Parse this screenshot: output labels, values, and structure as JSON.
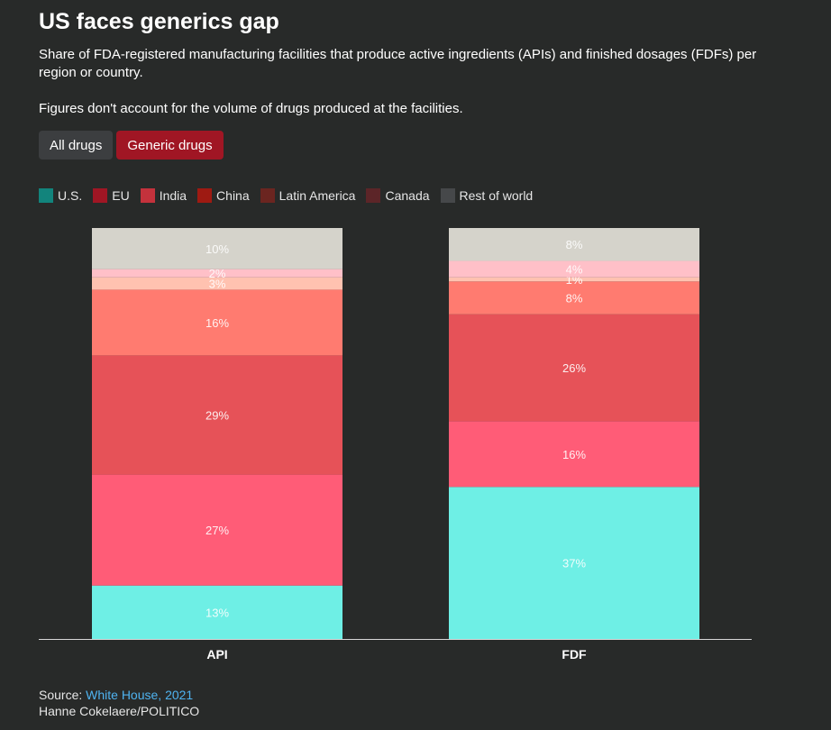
{
  "title": "US faces generics gap",
  "subtitle": "Share of FDA-registered manufacturing facilities that produce active ingredients (APIs) and finished dosages (FDFs) per region or country.",
  "note": "Figures don't account for the volume of drugs produced at the facilities.",
  "toggles": [
    {
      "label": "All drugs",
      "active": false
    },
    {
      "label": "Generic drugs",
      "active": true
    }
  ],
  "legend": [
    {
      "label": "U.S.",
      "color": "#12847c"
    },
    {
      "label": "EU",
      "color": "#a01624"
    },
    {
      "label": "India",
      "color": "#c4323c"
    },
    {
      "label": "China",
      "color": "#9e1a12"
    },
    {
      "label": "Latin America",
      "color": "#6b2520"
    },
    {
      "label": "Canada",
      "color": "#5c2528"
    },
    {
      "label": "Rest of world",
      "color": "#46484a"
    }
  ],
  "chart_data": {
    "type": "bar",
    "stacked": true,
    "categories": [
      "API",
      "FDF"
    ],
    "ylim": [
      0,
      100
    ],
    "series": [
      {
        "name": "U.S.",
        "values": [
          13,
          37
        ],
        "color": "#6eefe5"
      },
      {
        "name": "EU",
        "values": [
          27,
          16
        ],
        "color": "#ff5c77"
      },
      {
        "name": "India",
        "values": [
          29,
          26
        ],
        "color": "#e65258"
      },
      {
        "name": "China",
        "values": [
          16,
          8
        ],
        "color": "#ff7b70"
      },
      {
        "name": "Latin America",
        "values": [
          3,
          1
        ],
        "color": "#ffc2b0"
      },
      {
        "name": "Canada",
        "values": [
          2,
          4
        ],
        "color": "#ffc0c8"
      },
      {
        "name": "Rest of world",
        "values": [
          10,
          8
        ],
        "color": "#d5d3cb"
      }
    ],
    "labels": [
      [
        "13%",
        "27%",
        "29%",
        "16%",
        "3%",
        "2%",
        "10%"
      ],
      [
        "37%",
        "16%",
        "26%",
        "8%",
        "1%",
        "4%",
        "8%"
      ]
    ]
  },
  "footer": {
    "source_prefix": "Source: ",
    "source_link": "White House, 2021",
    "credit": "Hanne Cokelaere/POLITICO"
  }
}
